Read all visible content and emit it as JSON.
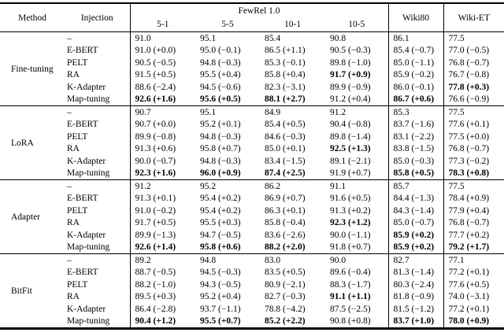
{
  "colors": {
    "background": "#ffffff",
    "text": "#000000",
    "rule": "#000000"
  },
  "table": {
    "header": {
      "method": "Method",
      "injection": "Injection",
      "fewrel_group": "FewRel 1.0",
      "fewrel_cols": [
        "5-1",
        "5-5",
        "10-1",
        "10-5"
      ],
      "wiki80": "Wiki80",
      "wiki_et": "Wiki-ET"
    },
    "groups": [
      {
        "method": "Fine-tuning",
        "rows": [
          {
            "injection": "–",
            "values": [
              "91.0",
              "95.1",
              "85.4",
              "90.8",
              "86.1",
              "77.5"
            ],
            "bold": [
              0,
              0,
              0,
              0,
              0,
              0
            ]
          },
          {
            "injection": "E-BERT",
            "values": [
              "91.0 (+0.0)",
              "95.0 (−0.1)",
              "86.5 (+1.1)",
              "90.5 (−0.3)",
              "85.4 (−0.7)",
              "77.0 (−0.5)"
            ],
            "bold": [
              0,
              0,
              0,
              0,
              0,
              0
            ]
          },
          {
            "injection": "PELT",
            "values": [
              "90.5 (−0.5)",
              "94.8 (−0.3)",
              "85.3 (−0.1)",
              "89.8 (−1.0)",
              "85.0 (−1.1)",
              "76.8 (−0.7)"
            ],
            "bold": [
              0,
              0,
              0,
              0,
              0,
              0
            ]
          },
          {
            "injection": "RA",
            "values": [
              "91.5 (+0.5)",
              "95.5 (+0.4)",
              "85.8 (+0.4)",
              "91.7 (+0.9)",
              "85.9 (−0.2)",
              "76.7 (−0.8)"
            ],
            "bold": [
              0,
              0,
              0,
              1,
              0,
              0
            ]
          },
          {
            "injection": "K-Adapter",
            "values": [
              "88.6 (−2.4)",
              "94.5 (−0.6)",
              "82.3 (−3.1)",
              "89.9 (−0.9)",
              "86.0 (−0.1)",
              "77.8 (+0.3)"
            ],
            "bold": [
              0,
              0,
              0,
              0,
              0,
              1
            ]
          },
          {
            "injection": "Map-tuning",
            "values": [
              "92.6 (+1.6)",
              "95.6 (+0.5)",
              "88.1 (+2.7)",
              "91.2 (+0.4)",
              "86.7 (+0.6)",
              "76.6 (−0.9)"
            ],
            "bold": [
              1,
              1,
              1,
              0,
              1,
              0
            ]
          }
        ]
      },
      {
        "method": "LoRA",
        "rows": [
          {
            "injection": "–",
            "values": [
              "90.7",
              "95.1",
              "84.9",
              "91.2",
              "85.3",
              "77.5"
            ],
            "bold": [
              0,
              0,
              0,
              0,
              0,
              0
            ]
          },
          {
            "injection": "E-BERT",
            "values": [
              "90.7 (+0.0)",
              "95.2 (+0.1)",
              "85.4 (+0.5)",
              "90.4 (−0.8)",
              "83.7 (−1.6)",
              "77.6 (+0.1)"
            ],
            "bold": [
              0,
              0,
              0,
              0,
              0,
              0
            ]
          },
          {
            "injection": "PELT",
            "values": [
              "89.9 (−0.8)",
              "94.8 (−0.3)",
              "84.6 (−0.3)",
              "89.8 (−1.4)",
              "83.1 (−2.2)",
              "77.5 (+0.0)"
            ],
            "bold": [
              0,
              0,
              0,
              0,
              0,
              0
            ]
          },
          {
            "injection": "RA",
            "values": [
              "91.3 (+0.6)",
              "95.8 (+0.7)",
              "85.0 (+0.1)",
              "92.5 (+1.3)",
              "83.8 (−1.5)",
              "76.8 (−0.7)"
            ],
            "bold": [
              0,
              0,
              0,
              1,
              0,
              0
            ]
          },
          {
            "injection": "K-Adapter",
            "values": [
              "90.0 (−0.7)",
              "94.8 (−0.3)",
              "83.4 (−1.5)",
              "89.1 (−2.1)",
              "85.0 (−0.3)",
              "77.3 (−0.2)"
            ],
            "bold": [
              0,
              0,
              0,
              0,
              0,
              0
            ]
          },
          {
            "injection": "Map-tuning",
            "values": [
              "92.3 (+1.6)",
              "96.0 (+0.9)",
              "87.4 (+2.5)",
              "91.9 (+0.7)",
              "85.8 (+0.5)",
              "78.3 (+0.8)"
            ],
            "bold": [
              1,
              1,
              1,
              0,
              1,
              1
            ]
          }
        ]
      },
      {
        "method": "Adapter",
        "rows": [
          {
            "injection": "–",
            "values": [
              "91.2",
              "95.2",
              "86.2",
              "91.1",
              "85.7",
              "77.5"
            ],
            "bold": [
              0,
              0,
              0,
              0,
              0,
              0
            ]
          },
          {
            "injection": "E-BERT",
            "values": [
              "91.3 (+0.1)",
              "95.4 (+0.2)",
              "86.9 (+0.7)",
              "91.6 (+0.5)",
              "84.4 (−1.3)",
              "78.4 (+0.9)"
            ],
            "bold": [
              0,
              0,
              0,
              0,
              0,
              0
            ]
          },
          {
            "injection": "PELT",
            "values": [
              "91.0 (−0.2)",
              "95.4 (+0.2)",
              "86.3 (+0.1)",
              "91.3 (+0.2)",
              "84.3 (−1.4)",
              "77.9 (+0.4)"
            ],
            "bold": [
              0,
              0,
              0,
              0,
              0,
              0
            ]
          },
          {
            "injection": "RA",
            "values": [
              "91.7 (+0.5)",
              "95.5 (+0.3)",
              "85.8 (−0.4)",
              "92.3 (+1.2)",
              "85.0 (−0.7)",
              "76.8 (−0.7)"
            ],
            "bold": [
              0,
              0,
              0,
              1,
              0,
              0
            ]
          },
          {
            "injection": "K-Adapter",
            "values": [
              "89.9 (−1.3)",
              "94.7 (−0.5)",
              "83.6 (−2.6)",
              "90.0 (−1.1)",
              "85.9 (+0.2)",
              "77.7 (+0.2)"
            ],
            "bold": [
              0,
              0,
              0,
              0,
              1,
              0
            ]
          },
          {
            "injection": "Map-tuning",
            "values": [
              "92.6 (+1.4)",
              "95.8 (+0.6)",
              "88.2 (+2.0)",
              "91.8 (+0.7)",
              "85.9 (+0.2)",
              "79.2 (+1.7)"
            ],
            "bold": [
              1,
              1,
              1,
              0,
              1,
              1
            ]
          }
        ]
      },
      {
        "method": "BitFit",
        "rows": [
          {
            "injection": "–",
            "values": [
              "89.2",
              "94.8",
              "83.0",
              "90.0",
              "82.7",
              "77.1"
            ],
            "bold": [
              0,
              0,
              0,
              0,
              0,
              0
            ]
          },
          {
            "injection": "E-BERT",
            "values": [
              "88.7 (−0.5)",
              "94.5 (−0.3)",
              "83.5 (+0.5)",
              "89.6 (−0.4)",
              "81.3 (−1.4)",
              "77.2 (+0.1)"
            ],
            "bold": [
              0,
              0,
              0,
              0,
              0,
              0
            ]
          },
          {
            "injection": "PELT",
            "values": [
              "88.2 (−1.0)",
              "94.3 (−0.5)",
              "80.9 (−2.1)",
              "88.3 (−1.7)",
              "80.3 (−2.4)",
              "77.6 (+0.5)"
            ],
            "bold": [
              0,
              0,
              0,
              0,
              0,
              0
            ]
          },
          {
            "injection": "RA",
            "values": [
              "89.5 (+0.3)",
              "95.2 (+0.4)",
              "82.7 (−0.3)",
              "91.1 (+1.1)",
              "81.8 (−0.9)",
              "74.0 (−3.1)"
            ],
            "bold": [
              0,
              0,
              0,
              1,
              0,
              0
            ]
          },
          {
            "injection": "K-Adapter",
            "values": [
              "86.4 (−2.8)",
              "93.7 (−1.1)",
              "78.8 (−4.2)",
              "87.5 (−2.5)",
              "81.5 (−1.2)",
              "77.2 (+0.1)"
            ],
            "bold": [
              0,
              0,
              0,
              0,
              0,
              0
            ]
          },
          {
            "injection": "Map-tuning",
            "values": [
              "90.4 (+1.2)",
              "95.5 (+0.7)",
              "85.2 (+2.2)",
              "90.8 (+0.8)",
              "83.7 (+1.0)",
              "78.0 (+0.9)"
            ],
            "bold": [
              1,
              1,
              1,
              0,
              1,
              1
            ]
          }
        ]
      }
    ]
  }
}
